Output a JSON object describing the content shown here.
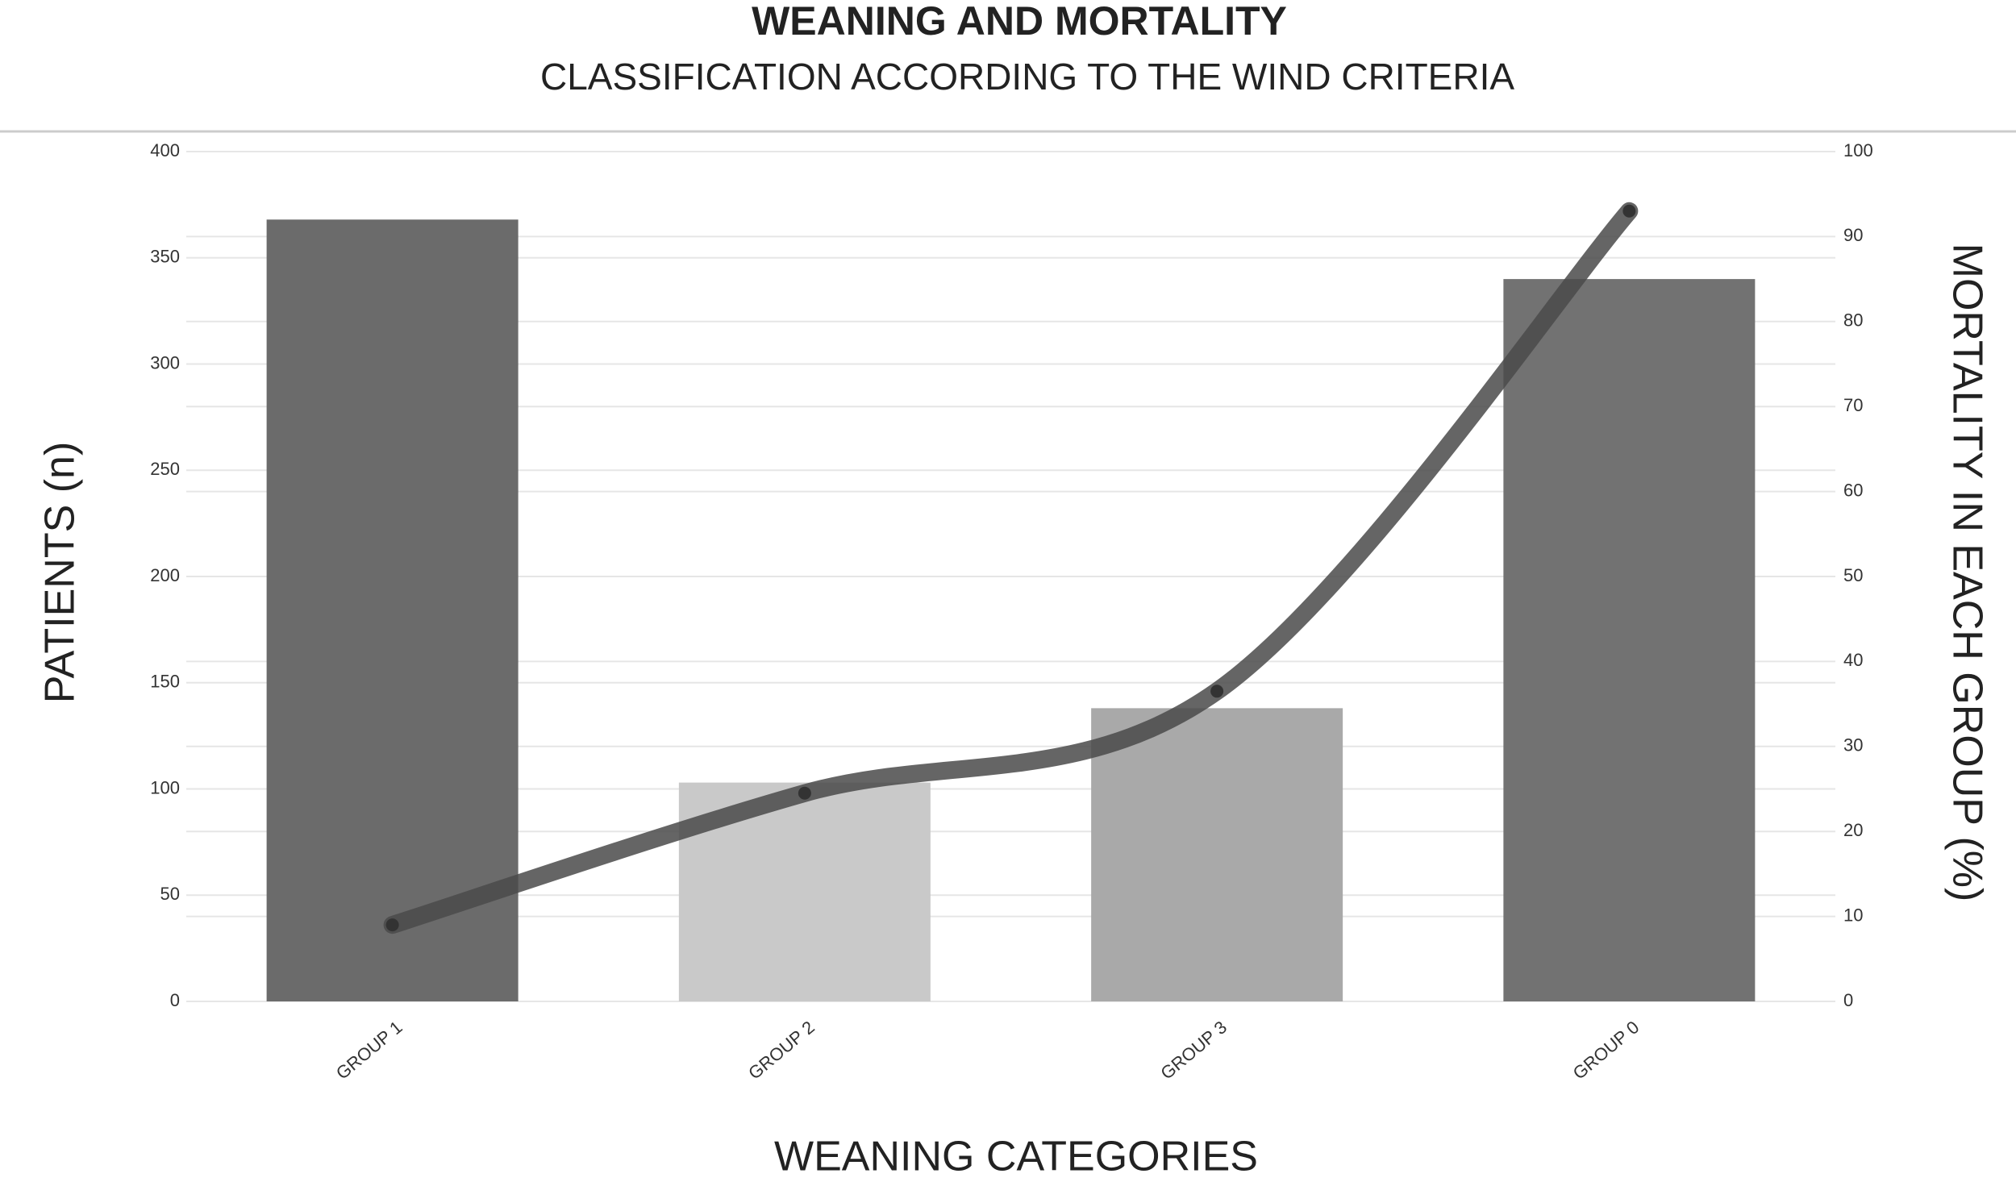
{
  "chart_data": {
    "type": "combo",
    "title": "WEANING AND MORTALITY",
    "subtitle": "CLASSIFICATION ACCORDING TO THE WIND CRITERIA",
    "x_label": "WEANING CATEGORIES",
    "y_label": "PATIENTS (n)",
    "y2_label": "MORTALITY IN EACH GROUP (%)",
    "categories": [
      "GROUP 1",
      "GROUP 2",
      "GROUP 3",
      "GROUP 0"
    ],
    "series": [
      {
        "type": "bar",
        "colors": [
          "#6b6b6b",
          "#c9c9c9",
          "#a9a9a9",
          "#727272"
        ],
        "values": [
          368,
          103,
          138,
          340
        ]
      },
      {
        "type": "line",
        "axis": "y2",
        "color": "#4a4a4a",
        "values": [
          9,
          24.5,
          36.5,
          93
        ]
      }
    ],
    "ylim": [
      0,
      400
    ],
    "yticks": [
      0,
      50,
      100,
      150,
      200,
      250,
      300,
      350,
      400
    ],
    "y2lim": [
      0,
      100
    ],
    "y2ticks": [
      0,
      10,
      20,
      30,
      40,
      50,
      60,
      70,
      80,
      90,
      100
    ],
    "grid": true
  }
}
